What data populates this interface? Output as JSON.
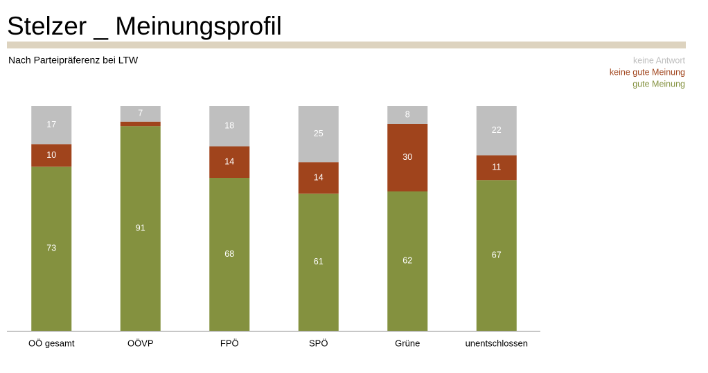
{
  "chart_data": {
    "type": "stacked-bar",
    "title": "Stelzer _ Meinungsprofil",
    "subtitle": "Nach Parteipräferenz bei LTW",
    "categories": [
      "OÖ gesamt",
      "OÖVP",
      "FPÖ",
      "SPÖ",
      "Grüne",
      "unentschlossen"
    ],
    "series": [
      {
        "name": "gute Meinung",
        "color": "#84913f",
        "values": [
          73,
          91,
          68,
          61,
          62,
          67
        ]
      },
      {
        "name": "keine gute Meinung",
        "color": "#a0441c",
        "values": [
          10,
          2,
          14,
          14,
          30,
          11
        ]
      },
      {
        "name": "keine Antwort",
        "color": "#bfbfbf",
        "values": [
          17,
          7,
          18,
          25,
          8,
          22
        ]
      }
    ],
    "ylim": [
      0,
      100
    ],
    "legend": "top-right"
  }
}
